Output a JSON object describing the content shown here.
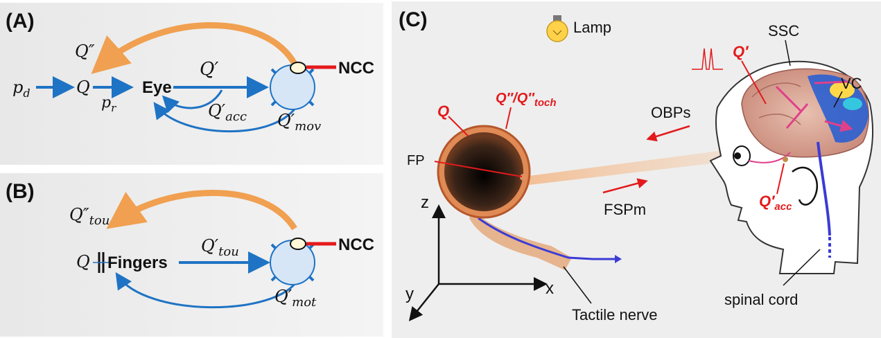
{
  "panel_a": {
    "label": "(A)",
    "q_double_prime": "Q″",
    "q": "Q",
    "pd": "p",
    "pd_sub": "d",
    "pr": "p",
    "pr_sub": "r",
    "eye": "Eye",
    "q_prime": "Q′",
    "q_prime_acc": "Q′",
    "acc_sub": "acc",
    "q_prime_mov": "Q′",
    "mov_sub": "mov",
    "ncc": "NCC"
  },
  "panel_b": {
    "label": "(B)",
    "q_double_prime_tou": "Q″",
    "tou_sub": "tou",
    "q": "Q",
    "fingers": "Fingers",
    "q_prime_tou": "Q′",
    "tou_sub2": "tou",
    "q_prime_mot": "Q′",
    "mot_sub": "mot",
    "ncc": "NCC"
  },
  "panel_c": {
    "label": "(C)",
    "lamp": "Lamp",
    "q_main": "Q",
    "q_pair": "Q″/Q″",
    "toch_sub": "toch",
    "fp": "FP",
    "obps": "OBPs",
    "fspm": "FSPm",
    "z": "z",
    "y": "y",
    "x": "x",
    "tactile_nerve": "Tactile nerve",
    "ssc": "SSC",
    "vc": "VC",
    "q_prime": "Q′",
    "q_prime_acc": "Q′",
    "acc_sub": "acc",
    "spinal_cord": "spinal cord"
  },
  "colors": {
    "panel_bg": "#ececec",
    "blue": "#1f73c4",
    "orange": "#f0a050",
    "red": "#e31a1c"
  }
}
